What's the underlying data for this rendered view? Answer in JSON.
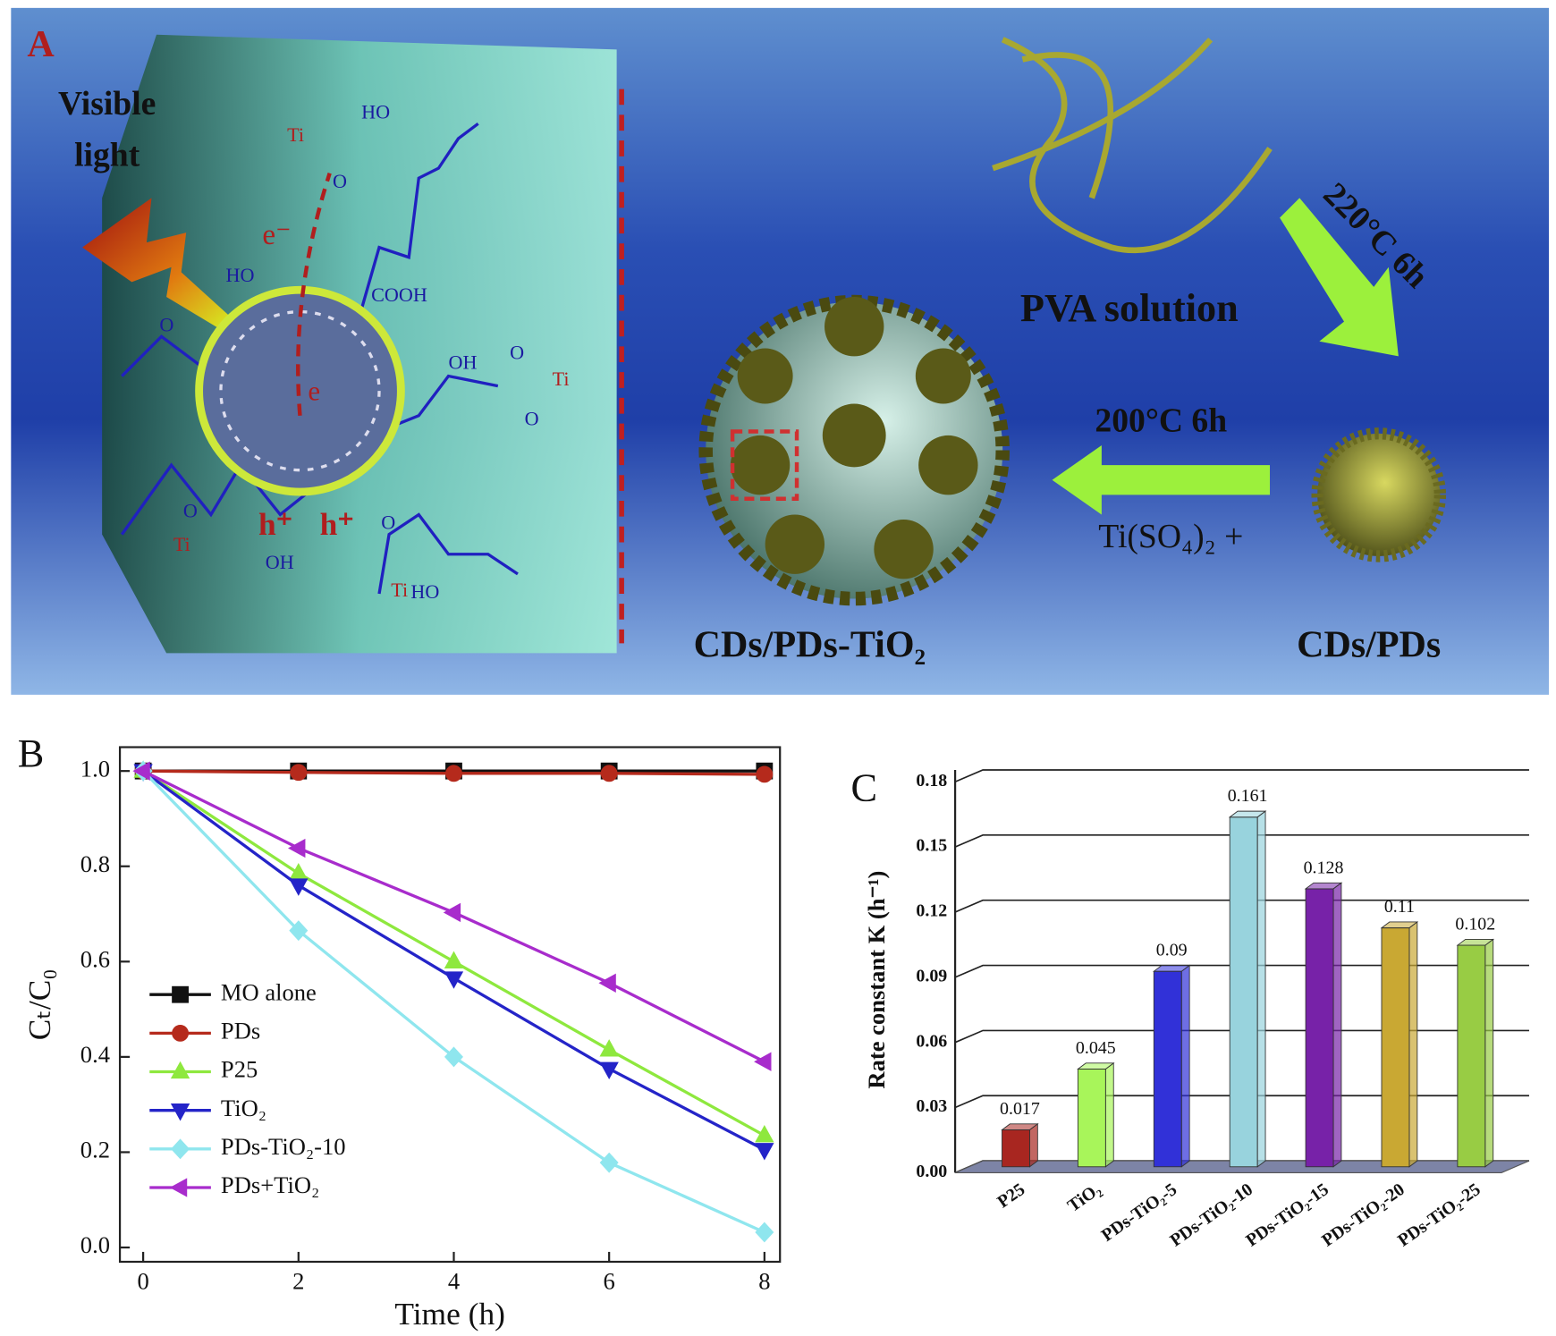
{
  "panel_a": {
    "label": "A",
    "labels": [
      "Visible",
      "light",
      "Ti",
      "HO",
      "O",
      "e⁻",
      "HO",
      "COOH",
      "e",
      "OH",
      "O",
      "O",
      "Ti",
      "O",
      "O",
      "Ti",
      "h⁺",
      "h⁺",
      "OH",
      "O",
      "Ti",
      "HO",
      "PVA solution",
      "220°C  6h",
      "200°C  6h",
      "Ti(SO₄)₂ +",
      "CDs/PDs-TiO₂",
      "CDs/PDs"
    ]
  },
  "chart_data": [
    {
      "type": "line",
      "panel": "B",
      "xlabel": "Time (h)",
      "ylabel": "Cₜ/C₀",
      "x": [
        0,
        2,
        4,
        6,
        8
      ],
      "xlim": [
        -0.3,
        8.2
      ],
      "xticks": [
        0,
        2,
        4,
        6,
        8
      ],
      "ylim": [
        -0.03,
        1.05
      ],
      "yticks": [
        {
          "value": 0,
          "label": "0.0"
        },
        0.2,
        0.4,
        0.6,
        0.8,
        {
          "value": 1,
          "label": "1.0"
        }
      ],
      "legend": "lower left",
      "series": [
        {
          "name": "MO alone",
          "color": "#111111",
          "marker": "square",
          "values": [
            1,
            1,
            1,
            1,
            1
          ]
        },
        {
          "name": "PDs",
          "color": "#b52a1c",
          "marker": "circle",
          "values": [
            1,
            0.997,
            0.995,
            0.995,
            0.993
          ]
        },
        {
          "name": "P25",
          "color": "#8ee83e",
          "marker": "triangle-up",
          "values": [
            1,
            0.785,
            0.6,
            0.415,
            0.235
          ]
        },
        {
          "name": "TiO₂",
          "color": "#2424c8",
          "marker": "triangle-down",
          "values": [
            1,
            0.76,
            0.565,
            0.375,
            0.205
          ]
        },
        {
          "name": "PDs-TiO₂-10",
          "color": "#8fe6ee",
          "marker": "diamond",
          "values": [
            1,
            0.665,
            0.4,
            0.178,
            0.032
          ]
        },
        {
          "name": "PDs+TiO₂",
          "color": "#a82ccc",
          "marker": "triangle-left",
          "values": [
            1,
            0.838,
            0.703,
            0.555,
            0.39
          ]
        }
      ]
    },
    {
      "type": "bar3d",
      "panel": "C",
      "ylabel": "Rate constant K (h⁻¹)",
      "categories": [
        "P25",
        "TiO₂",
        "PDs-TiO₂-5",
        "PDs-TiO₂-10",
        "PDs-TiO₂-15",
        "PDs-TiO₂-20",
        "PDs-TiO₂-25"
      ],
      "values": [
        0.017,
        0.045,
        0.09,
        0.161,
        0.128,
        0.11,
        0.102
      ],
      "colors": [
        "#a82620",
        "#a8f55a",
        "#3131d8",
        "#98d3dd",
        "#7722a8",
        "#c9a833",
        "#98cc44"
      ],
      "ylim": [
        0,
        0.18
      ],
      "yticks": [
        {
          "value": 0,
          "label": "0.00"
        },
        {
          "value": 0.03,
          "label": "0.03"
        },
        {
          "value": 0.06,
          "label": "0.06"
        },
        {
          "value": 0.09,
          "label": "0.09"
        },
        {
          "value": 0.12,
          "label": "0.12"
        },
        {
          "value": 0.15,
          "label": "0.15"
        },
        {
          "value": 0.18,
          "label": "0.18"
        }
      ],
      "grid": true
    }
  ]
}
